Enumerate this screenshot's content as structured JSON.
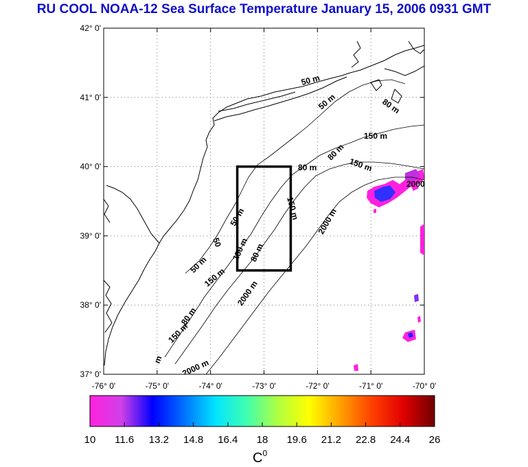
{
  "title": "RU COOL  NOAA-12 Sea Surface Temperature January 15, 2006 0931 GMT",
  "map": {
    "lat_labels": [
      "42° 0'",
      "41° 0'",
      "40° 0'",
      "39° 0'",
      "38° 0'",
      "37° 0'"
    ],
    "lon_labels": [
      "-76° 0'",
      "-75° 0'",
      "-74° 0'",
      "-73° 0'",
      "-72° 0'",
      "-71° 0'",
      "-70° 0'"
    ],
    "lat_range": [
      37,
      42
    ],
    "lon_range": [
      -76,
      -70
    ],
    "grid": "dotted",
    "study_box": {
      "lon_min": -73.5,
      "lon_max": -72.5,
      "lat_min": 38.5,
      "lat_max": 40.0
    },
    "contour_labels": [
      "50 m",
      "50 m",
      "80 m",
      "150 m",
      "80 m",
      "150 m",
      "2000 m",
      "50 m",
      "150 m",
      "80 m",
      "2000",
      "50",
      "50 m",
      "80 m",
      "150 m",
      "2000 m",
      "80 m",
      "150 m",
      "150 m",
      "2000 m",
      "m"
    ]
  },
  "colorbar": {
    "ticks": [
      "10",
      "11.6",
      "13.2",
      "14.8",
      "16.4",
      "18",
      "19.6",
      "21.2",
      "22.8",
      "24.4",
      "26"
    ],
    "unit": "C",
    "unit_sup": "0",
    "colors": [
      "#ff22dd",
      "#d040e8",
      "#0000ff",
      "#0070ff",
      "#00e4ff",
      "#40ffb0",
      "#b0ff40",
      "#ffff00",
      "#ffa000",
      "#ff4000",
      "#e00000",
      "#700000"
    ]
  }
}
